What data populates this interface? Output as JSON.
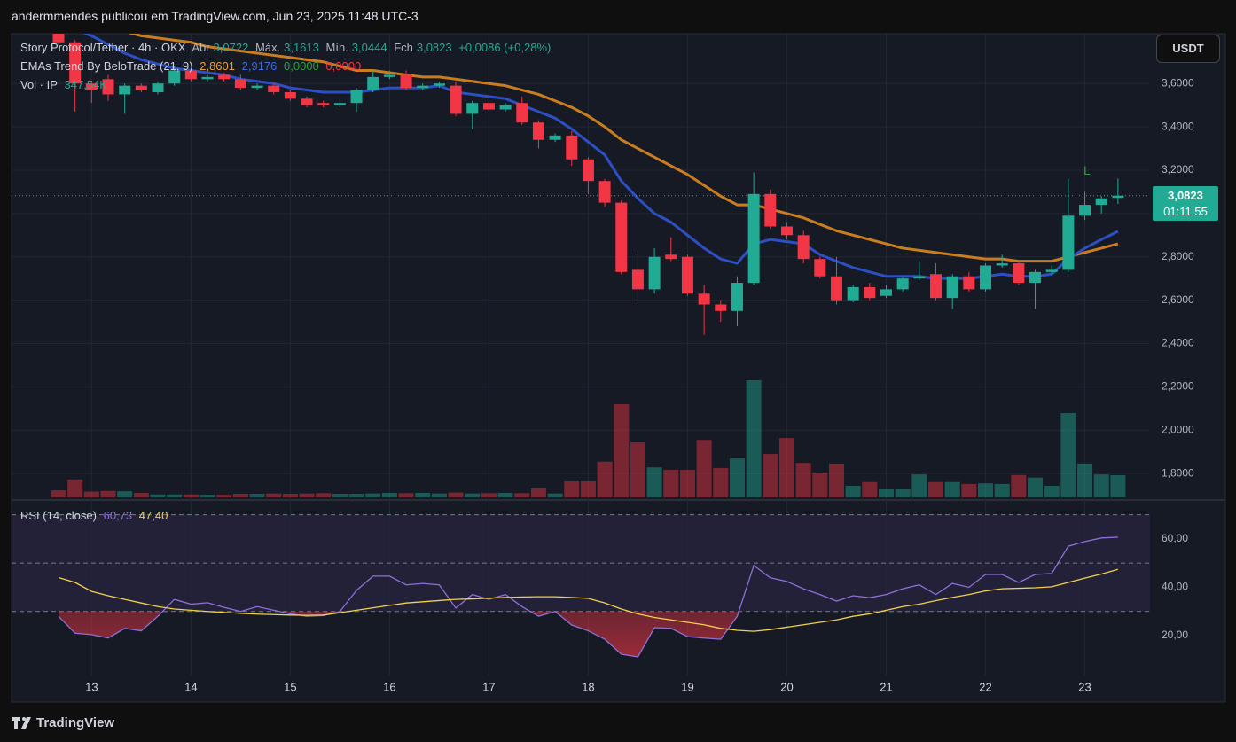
{
  "header": {
    "publisher": "andermmendes publicou em TradingView.com, Jun 23, 2025 11:48 UTC-3",
    "legend": {
      "symbol": "Story Protocol/Tether · 4h · OKX",
      "fields": [
        {
          "key": "Abr",
          "value": "3,0722"
        },
        {
          "key": "Máx.",
          "value": "3,1613"
        },
        {
          "key": "Mín.",
          "value": "3,0444"
        },
        {
          "key": "Fch",
          "value": "3,0823"
        }
      ],
      "change": "+0,0086 (+0,28%)"
    },
    "indicator": {
      "name": "EMAs Trend By BeloTrade (21, 9)",
      "values": [
        "2,8601",
        "2,9176",
        "0,0000",
        "0,0000"
      ]
    },
    "volume": {
      "name": "Vol · IP",
      "value": "347,54K"
    },
    "currency": "USDT"
  },
  "rsi_legend": {
    "name": "RSI (14, close)",
    "values": [
      "60,73",
      "47,40"
    ]
  },
  "footer": {
    "brand": "TradingView"
  },
  "chart_data": [
    {
      "type": "candlestick",
      "categories": [
        null,
        null,
        "13",
        null,
        null,
        null,
        null,
        null,
        "14",
        null,
        null,
        null,
        null,
        null,
        "15",
        null,
        null,
        null,
        null,
        null,
        "16",
        null,
        null,
        null,
        null,
        null,
        "17",
        null,
        null,
        null,
        null,
        null,
        "18",
        null,
        null,
        null,
        null,
        null,
        "19",
        null,
        null,
        null,
        null,
        null,
        "20",
        null,
        null,
        null,
        null,
        null,
        "21",
        null,
        null,
        null,
        null,
        null,
        "22",
        null,
        null,
        null,
        null,
        null,
        "23",
        null,
        null
      ],
      "open": [
        3.84,
        3.79,
        3.6,
        3.62,
        3.55,
        3.59,
        3.56,
        3.6,
        3.66,
        3.62,
        3.64,
        3.62,
        3.58,
        3.59,
        3.56,
        3.53,
        3.51,
        3.5,
        3.51,
        3.57,
        3.63,
        3.64,
        3.58,
        3.59,
        3.59,
        3.46,
        3.51,
        3.48,
        3.51,
        3.42,
        3.34,
        3.36,
        3.25,
        3.15,
        3.05,
        2.74,
        2.65,
        2.81,
        2.8,
        2.63,
        2.58,
        2.55,
        2.68,
        3.09,
        2.94,
        2.9,
        2.79,
        2.71,
        2.6,
        2.66,
        2.62,
        2.65,
        2.7,
        2.72,
        2.61,
        2.71,
        2.65,
        2.76,
        2.77,
        2.68,
        2.73,
        2.74,
        2.99,
        3.04,
        3.0722
      ],
      "high": [
        3.86,
        3.8,
        3.61,
        3.64,
        3.6,
        3.6,
        3.61,
        3.68,
        3.67,
        3.64,
        3.65,
        3.64,
        3.6,
        3.6,
        3.57,
        3.54,
        3.52,
        3.52,
        3.58,
        3.66,
        3.66,
        3.66,
        3.6,
        3.61,
        3.61,
        3.52,
        3.52,
        3.51,
        3.54,
        3.43,
        3.37,
        3.38,
        3.26,
        3.16,
        3.06,
        2.83,
        2.84,
        2.89,
        2.81,
        2.67,
        2.6,
        2.71,
        3.19,
        3.11,
        2.96,
        2.92,
        2.8,
        2.8,
        2.67,
        2.68,
        2.67,
        2.71,
        2.78,
        2.77,
        2.72,
        2.73,
        2.77,
        2.81,
        2.78,
        2.74,
        2.76,
        3.16,
        3.1,
        3.08,
        3.1613
      ],
      "low": [
        3.78,
        3.47,
        3.51,
        3.52,
        3.46,
        3.56,
        3.55,
        3.59,
        3.61,
        3.61,
        3.61,
        3.57,
        3.57,
        3.55,
        3.52,
        3.49,
        3.49,
        3.49,
        3.47,
        3.56,
        3.62,
        3.57,
        3.57,
        3.58,
        3.45,
        3.39,
        3.47,
        3.47,
        3.41,
        3.3,
        3.33,
        3.22,
        3.09,
        3.03,
        2.72,
        2.58,
        2.63,
        2.78,
        2.62,
        2.44,
        2.5,
        2.48,
        2.67,
        2.93,
        2.88,
        2.77,
        2.7,
        2.58,
        2.59,
        2.6,
        2.61,
        2.64,
        2.69,
        2.6,
        2.56,
        2.64,
        2.64,
        2.75,
        2.67,
        2.56,
        2.72,
        2.73,
        2.97,
        3.0,
        3.0444
      ],
      "close": [
        3.79,
        3.6,
        3.57,
        3.55,
        3.59,
        3.57,
        3.6,
        3.66,
        3.62,
        3.63,
        3.62,
        3.58,
        3.59,
        3.56,
        3.53,
        3.5,
        3.5,
        3.51,
        3.57,
        3.63,
        3.64,
        3.58,
        3.59,
        3.6,
        3.46,
        3.51,
        3.48,
        3.5,
        3.42,
        3.34,
        3.36,
        3.25,
        3.15,
        3.05,
        2.73,
        2.65,
        2.8,
        2.79,
        2.63,
        2.58,
        2.55,
        2.68,
        3.09,
        2.94,
        2.9,
        2.79,
        2.71,
        2.6,
        2.66,
        2.61,
        2.65,
        2.7,
        2.71,
        2.61,
        2.71,
        2.65,
        2.76,
        2.77,
        2.68,
        2.73,
        2.74,
        2.99,
        3.04,
        3.07,
        3.0823
      ],
      "up_color": "#22ab94",
      "down_color": "#f23645",
      "lines": [
        {
          "color": "#c97d1e",
          "values": [
            3.92,
            3.9,
            3.88,
            3.86,
            3.84,
            3.82,
            3.81,
            3.8,
            3.79,
            3.77,
            3.76,
            3.75,
            3.74,
            3.73,
            3.72,
            3.71,
            3.7,
            3.68,
            3.66,
            3.66,
            3.65,
            3.64,
            3.63,
            3.63,
            3.62,
            3.61,
            3.6,
            3.59,
            3.57,
            3.55,
            3.52,
            3.49,
            3.45,
            3.4,
            3.34,
            3.3,
            3.26,
            3.22,
            3.18,
            3.13,
            3.08,
            3.04,
            3.04,
            3.02,
            3.0,
            2.98,
            2.95,
            2.92,
            2.9,
            2.88,
            2.86,
            2.84,
            2.83,
            2.82,
            2.81,
            2.8,
            2.79,
            2.79,
            2.78,
            2.78,
            2.78,
            2.8,
            2.82,
            2.84,
            2.8601
          ]
        },
        {
          "color": "#2d4fc4",
          "values": [
            3.88,
            3.85,
            3.82,
            3.78,
            3.74,
            3.71,
            3.69,
            3.67,
            3.66,
            3.65,
            3.64,
            3.62,
            3.61,
            3.6,
            3.58,
            3.57,
            3.56,
            3.56,
            3.56,
            3.57,
            3.58,
            3.58,
            3.58,
            3.59,
            3.56,
            3.55,
            3.54,
            3.53,
            3.5,
            3.47,
            3.44,
            3.39,
            3.33,
            3.27,
            3.15,
            3.07,
            3.0,
            2.96,
            2.9,
            2.84,
            2.79,
            2.77,
            2.86,
            2.88,
            2.87,
            2.86,
            2.81,
            2.78,
            2.75,
            2.73,
            2.71,
            2.71,
            2.71,
            2.7,
            2.7,
            2.7,
            2.71,
            2.72,
            2.71,
            2.71,
            2.72,
            2.79,
            2.84,
            2.88,
            2.9176
          ]
        }
      ],
      "volume": {
        "ylim": [
          0,
          2780
        ],
        "values": [
          110,
          280,
          90,
          100,
          95,
          70,
          45,
          45,
          45,
          40,
          40,
          55,
          55,
          60,
          55,
          60,
          65,
          55,
          55,
          60,
          70,
          65,
          70,
          60,
          75,
          60,
          65,
          70,
          65,
          140,
          60,
          250,
          250,
          560,
          1460,
          860,
          470,
          430,
          430,
          900,
          460,
          610,
          1835,
          680,
          930,
          540,
          390,
          530,
          180,
          240,
          125,
          125,
          360,
          240,
          240,
          210,
          220,
          210,
          350,
          310,
          180,
          1320,
          530,
          360,
          347.54
        ]
      },
      "ylim": [
        1.69,
        3.83
      ],
      "yticks": [
        {
          "value": 1.8,
          "label": "1,8000"
        },
        {
          "value": 2.0,
          "label": "2,0000"
        },
        {
          "value": 2.2,
          "label": "2,2000"
        },
        {
          "value": 2.4,
          "label": "2,4000"
        },
        {
          "value": 2.6,
          "label": "2,6000"
        },
        {
          "value": 2.8,
          "label": "2,8000"
        },
        {
          "value": 3.0,
          "label": "3,0000"
        },
        {
          "value": 3.2,
          "label": "3,2000"
        },
        {
          "value": 3.4,
          "label": "3,4000"
        },
        {
          "value": 3.6,
          "label": "3,6000"
        }
      ],
      "grid": true,
      "last_price_label": "3,0823",
      "countdown": "01:11:55",
      "annotation": "L"
    },
    {
      "type": "line",
      "series": [
        {
          "color": "#8e6fd8",
          "values": [
            28,
            21,
            20.4,
            19,
            23,
            22,
            28,
            35,
            33,
            33.6,
            31.7,
            30,
            32,
            30.5,
            29,
            28,
            28.3,
            30,
            38.7,
            44.6,
            44.6,
            41,
            41.6,
            41,
            31.4,
            37,
            35,
            37,
            32,
            28,
            30,
            24.4,
            22,
            18.5,
            12.3,
            11.2,
            23.3,
            23,
            19.6,
            19,
            18.5,
            28,
            49,
            43.9,
            42.4,
            39.4,
            37,
            34.3,
            36.5,
            35.7,
            37,
            39.4,
            41,
            37,
            41.6,
            40,
            45.3,
            45.3,
            42,
            45.3,
            45.7,
            57,
            58.9,
            60.4,
            60.73
          ]
        },
        {
          "color": "#f2d04a",
          "values": [
            44,
            42,
            38.3,
            36.5,
            35,
            33.5,
            32,
            31,
            30.5,
            30,
            29.6,
            29.2,
            28.9,
            28.7,
            28.5,
            28.4,
            28.5,
            29.5,
            30.5,
            31.5,
            32.5,
            33.5,
            34,
            34.5,
            35,
            35.2,
            35.5,
            35.8,
            36,
            36.1,
            36.1,
            35.8,
            35.4,
            33.5,
            31,
            29,
            27.5,
            26.5,
            25.5,
            24.5,
            23,
            22.2,
            21.8,
            22.5,
            23.5,
            24.5,
            25.5,
            26.5,
            28,
            29,
            30.5,
            32,
            33,
            34.5,
            35.8,
            37,
            38.5,
            39.4,
            39.6,
            39.8,
            40.2,
            42,
            43.8,
            45.5,
            47.4
          ]
        }
      ],
      "levels": [
        70,
        50,
        30
      ],
      "ylim": [
        -7.5,
        75
      ],
      "yticks": [
        {
          "value": 20,
          "label": "20,00"
        },
        {
          "value": 40,
          "label": "40,00"
        },
        {
          "value": 60,
          "label": "60,00"
        }
      ]
    }
  ]
}
